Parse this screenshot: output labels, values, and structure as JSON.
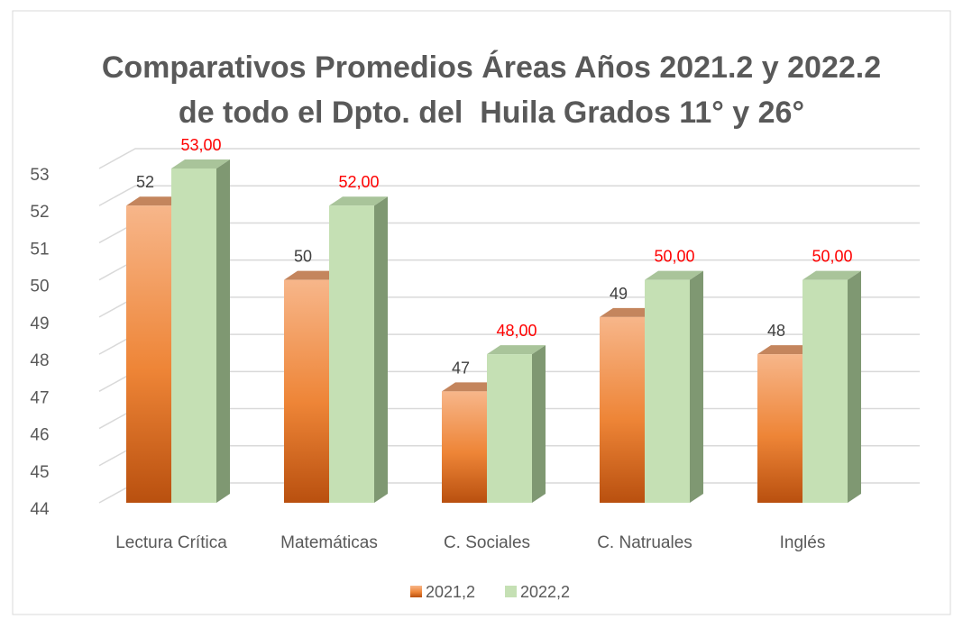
{
  "chart_data": {
    "type": "bar3d",
    "title": [
      "Comparativos Promedios Áreas Años 2021.2 y 2022.2",
      "de todo el Dpto. del  Huila Grados 11° y 26°"
    ],
    "categories": [
      "Lectura Crítica",
      "Matemáticas",
      "C. Sociales",
      "C. Natruales",
      "Inglés"
    ],
    "series": [
      {
        "name": "2021,2",
        "color": "#ed7d31",
        "values": [
          52,
          50,
          47,
          49,
          48
        ],
        "label_color": "#404040"
      },
      {
        "name": "2022,2",
        "color": "#c5e0b4",
        "values": [
          53,
          52,
          48,
          50,
          50
        ],
        "value_labels": [
          "53,00",
          "52,00",
          "48,00",
          "50,00",
          "50,00"
        ],
        "label_color": "#ff0000"
      }
    ],
    "ylim": [
      44,
      53
    ],
    "yticks": [
      44,
      45,
      46,
      47,
      48,
      49,
      50,
      51,
      52,
      53
    ],
    "grid": true,
    "legend": "bottom"
  }
}
